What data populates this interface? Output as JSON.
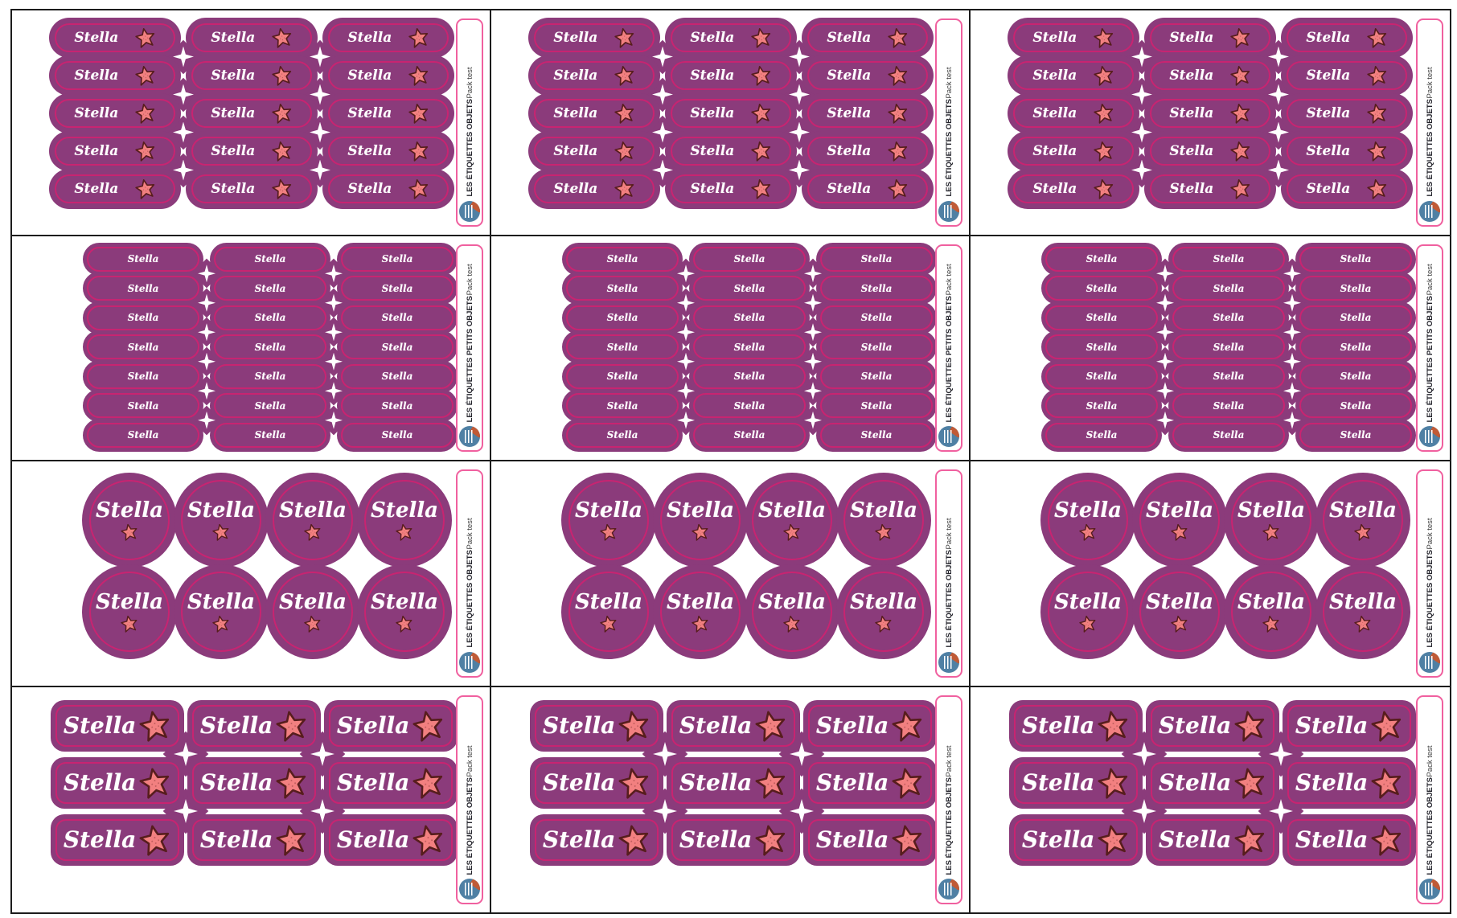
{
  "window": {
    "background": "#ffffff",
    "grid_border_color": "#1c1c1c"
  },
  "name_text": "Stella",
  "sidebar": {
    "subtitle": "Pack test"
  },
  "colors": {
    "label_purple": "#8b3b7b",
    "inner_border_pink": "#c82471",
    "label_text": "#ffffff",
    "star_fill": "#f28080",
    "star_outline": "#571d1d",
    "sidebar_border_pink": "#f0609f",
    "sidebar_title": "#23232b",
    "logo_blue": "#4f80a4",
    "logo_accent": "#c05a36",
    "cut_mark": "#ffffff"
  },
  "icons": {
    "label_icon": "starfish-icon",
    "cut_mark_icon": "diamond-cut-icon",
    "brand_icon": "brand-logo"
  },
  "sheet": {
    "panels_per_row": 3,
    "rows": [
      {
        "id": "mini-pills-with-star",
        "title": "LES ÉTIQUETTES OBJETS",
        "label_shape": "pill",
        "has_star": true,
        "star_position": "right",
        "grid": {
          "rows": 5,
          "cols": 3
        }
      },
      {
        "id": "small-pills-text-only",
        "title": "LES ÉTIQUETTES PETITS OBJETS",
        "label_shape": "pill",
        "has_star": false,
        "star_position": "none",
        "grid": {
          "rows": 7,
          "cols": 3
        }
      },
      {
        "id": "round-labels-with-star",
        "title": "LES ÉTIQUETTES OBJETS",
        "label_shape": "circle",
        "has_star": true,
        "star_position": "below",
        "grid": {
          "rows": 2,
          "cols": 4
        }
      },
      {
        "id": "rect-labels-with-star",
        "title": "LES ÉTIQUETTES OBJETS",
        "label_shape": "rounded-rect",
        "has_star": true,
        "star_position": "right",
        "grid": {
          "rows": 3,
          "cols": 3
        }
      }
    ]
  }
}
